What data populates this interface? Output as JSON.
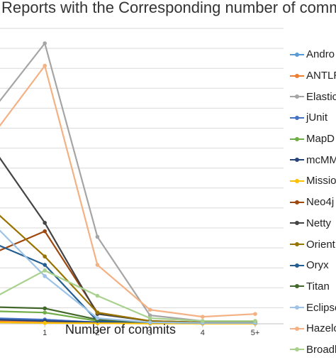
{
  "chart_data": {
    "type": "line",
    "title": "Reports with the Corresponding number of comm",
    "xlabel": "Number of commits",
    "ylabel": "",
    "categories": [
      "1",
      "2",
      "3",
      "4",
      "5+"
    ],
    "ylim": [
      0,
      100
    ],
    "grid": true,
    "legend_position": "right",
    "series": [
      {
        "name": "Andro",
        "color": "#5b9bd5",
        "start": 1.5,
        "values": [
          1.5,
          0.5,
          0.3,
          0.2,
          0.2
        ]
      },
      {
        "name": "ANTLR",
        "color": "#ed7d31",
        "start": 1.0,
        "values": [
          0.8,
          0.3,
          0.2,
          0.1,
          0.1
        ]
      },
      {
        "name": "Elastic",
        "color": "#a5a5a5",
        "start": 76,
        "values": [
          100,
          31,
          3,
          1,
          1
        ]
      },
      {
        "name": "jUnit",
        "color": "#4472c4",
        "start": 2.0,
        "values": [
          1.5,
          0.5,
          0.3,
          0.2,
          0.2
        ]
      },
      {
        "name": "MapD",
        "color": "#70ad47",
        "start": 4.5,
        "values": [
          4.0,
          1.0,
          0.5,
          0.3,
          0.2
        ]
      },
      {
        "name": "mcMM",
        "color": "#264478",
        "start": 1.5,
        "values": [
          1.0,
          0.5,
          0.3,
          0.2,
          0.2
        ]
      },
      {
        "name": "Missio",
        "color": "#ffc000",
        "start": 0.5,
        "values": [
          0.3,
          0.2,
          0.1,
          0.1,
          0.1
        ]
      },
      {
        "name": "Neo4j",
        "color": "#9e480e",
        "start": 25,
        "values": [
          33,
          4,
          1,
          0.5,
          0.5
        ]
      },
      {
        "name": "Netty",
        "color": "#444444",
        "start": 63,
        "values": [
          36,
          3.5,
          1,
          0.5,
          0.5
        ]
      },
      {
        "name": "Orient",
        "color": "#997300",
        "start": 41,
        "values": [
          24,
          4,
          1,
          0.5,
          0.5
        ]
      },
      {
        "name": "Oryx",
        "color": "#255e91",
        "start": 29,
        "values": [
          21,
          1,
          0.5,
          0.3,
          0.3
        ]
      },
      {
        "name": "Titan",
        "color": "#43682b",
        "start": 6.0,
        "values": [
          5.5,
          1.5,
          0.5,
          0.3,
          0.3
        ]
      },
      {
        "name": "Eclipse",
        "color": "#9dc3e6",
        "start": 36,
        "values": [
          17,
          2,
          0.5,
          0.3,
          0.3
        ]
      },
      {
        "name": "Hazelc",
        "color": "#f4b183",
        "start": 67,
        "values": [
          92,
          21,
          5,
          2.5,
          3.5
        ]
      },
      {
        "name": "Broadl",
        "color": "#a9d18e",
        "start": 9.0,
        "values": [
          19,
          10,
          2,
          1,
          1
        ]
      }
    ]
  }
}
